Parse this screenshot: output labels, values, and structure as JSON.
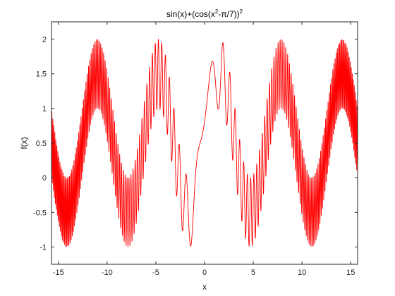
{
  "chart_data": {
    "type": "line",
    "title": {
      "part1": "sin(x)+(cos(x",
      "exp_inner": "2",
      "part2": "-π/7))",
      "exp_outer": "2"
    },
    "xlabel": "x",
    "ylabel": "f(x)",
    "xlim": [
      -15.708,
      15.708
    ],
    "ylim": [
      -1.25,
      2.25
    ],
    "xticks": [
      -15,
      -10,
      -5,
      0,
      5,
      10,
      15
    ],
    "xtick_labels": [
      "-15",
      "-10",
      "-5",
      "0",
      "5",
      "10",
      "15"
    ],
    "yticks": [
      -1,
      -0.5,
      0,
      0.5,
      1,
      1.5,
      2
    ],
    "ytick_labels": [
      "-1",
      "-0.5",
      "0",
      "0.5",
      "1",
      "1.5",
      "2"
    ],
    "grid": false,
    "series": [
      {
        "function": "sin(x)+(cos(x^2-pi/7))^2",
        "x_start": -15.708,
        "x_end": 15.708,
        "color": "#ff0000"
      }
    ]
  }
}
